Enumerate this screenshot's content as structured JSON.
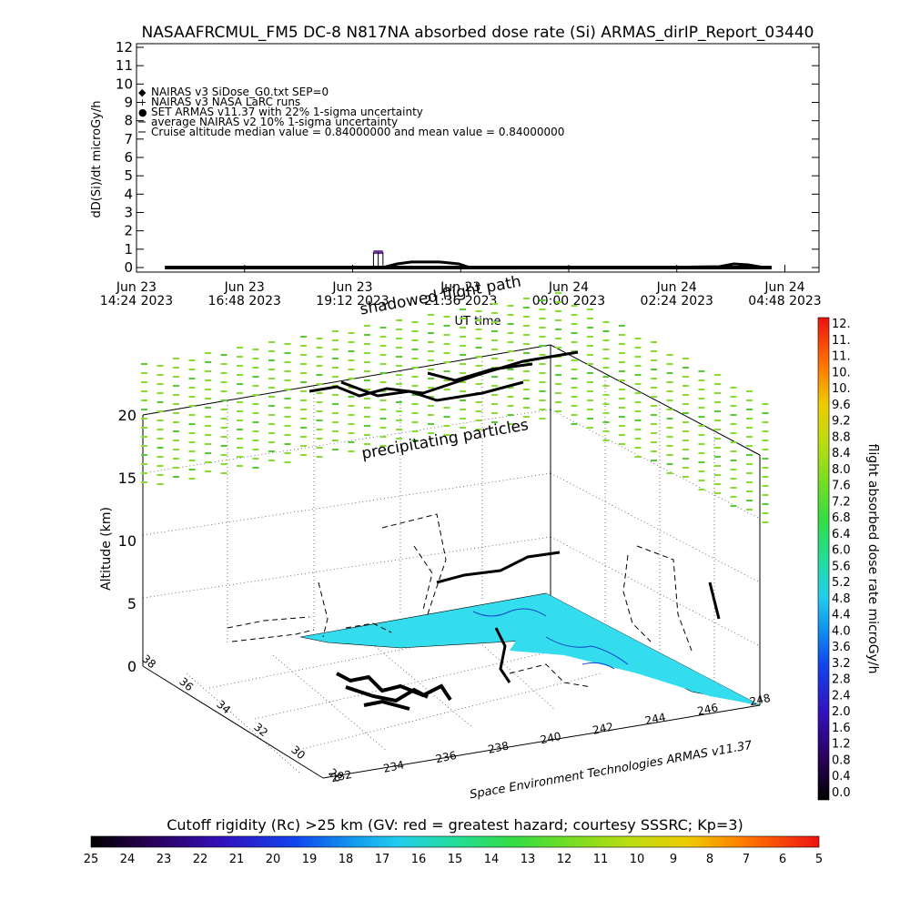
{
  "header": {
    "title": "NASAAFRCMUL_FM5 DC-8   N817NA absorbed dose rate (Si) ARMAS_dirIP_Report_03440"
  },
  "top_plot": {
    "ylabel": "dD(Si)/dt microGy/h",
    "xlabel": "UT time",
    "legend": [
      {
        "glyph": "◆",
        "text": "NAIRAS v3 SiDose_G0.txt SEP=0"
      },
      {
        "glyph": "+",
        "text": "NAIRAS v3 NASA LaRC runs"
      },
      {
        "glyph": "●",
        "text": "SET ARMAS v11.37 with 22% 1-sigma uncertainty"
      },
      {
        "glyph": "",
        "text": "average NAIRAS v2 10% 1-sigma uncertainty"
      },
      {
        "glyph": "",
        "text": "Cruise altitude median value = 0.84000000 and mean value = 0.84000000"
      }
    ]
  },
  "bottom_plot": {
    "ylabel": "Altitude (km)",
    "footer": "Space Environment Technologies ARMAS v11.37",
    "annotation_precip": "precipitating particles",
    "annotation_shadow": "shadowed flight path"
  },
  "colorbar_right": {
    "label": "flight absorbed dose rate microGy/h",
    "ticks": [
      "12.",
      "11.",
      "11.",
      "10.",
      "10.",
      "9.6",
      "9.2",
      "8.8",
      "8.4",
      "8.0",
      "7.6",
      "7.2",
      "6.8",
      "6.4",
      "6.0",
      "5.6",
      "5.2",
      "4.8",
      "4.4",
      "4.0",
      "3.6",
      "3.2",
      "2.8",
      "2.4",
      "2.0",
      "1.6",
      "1.2",
      "0.8",
      "0.4",
      "0.0"
    ]
  },
  "colorbar_bottom": {
    "title": "Cutoff rigidity (Rc) >25 km (GV: red = greatest hazard; courtesy SSSRC; Kp=3)",
    "ticks": [
      "25",
      "24",
      "23",
      "22",
      "21",
      "20",
      "19",
      "18",
      "17",
      "16",
      "15",
      "14",
      "13",
      "12",
      "11",
      "10",
      "9",
      "8",
      "7",
      "6",
      "5"
    ]
  },
  "colors": {
    "ocean": "#33ddee",
    "precip": "#88dd33",
    "flight": "#000000",
    "armas_point": "#663399"
  },
  "chart_data": [
    {
      "type": "line",
      "title": "NASAAFRCMUL_FM5 DC-8   N817NA absorbed dose rate (Si) ARMAS_dirIP_Report_03440",
      "xlabel": "UT time",
      "ylabel": "dD(Si)/dt microGy/h",
      "ylim": [
        0,
        12
      ],
      "yticks": [
        "0",
        "1",
        "2",
        "3",
        "4",
        "5",
        "6",
        "7",
        "8",
        "9",
        "10",
        "11",
        "12"
      ],
      "xticks": [
        {
          "l1": "Jun 23",
          "l2": "14:24 2023"
        },
        {
          "l1": "Jun 23",
          "l2": "16:48 2023"
        },
        {
          "l1": "Jun 23",
          "l2": "19:12 2023"
        },
        {
          "l1": "Jun 23",
          "l2": "21:36 2023"
        },
        {
          "l1": "Jun 24",
          "l2": "00:00 2023"
        },
        {
          "l1": "Jun 24",
          "l2": "02:24 2023"
        },
        {
          "l1": "Jun 24",
          "l2": "04:48 2023"
        }
      ],
      "xlim_hours": [
        0,
        14.4
      ],
      "series": [
        {
          "name": "NAIRAS v3 NASA LaRC runs",
          "x_hours": [
            0.6,
            3.0,
            5.2,
            5.5,
            5.8,
            6.4,
            6.8,
            7.0,
            7.5,
            9,
            11,
            12.3,
            12.6,
            12.9,
            13.2,
            13.4
          ],
          "values": [
            0,
            0,
            0,
            0.2,
            0.3,
            0.3,
            0.2,
            0.02,
            0,
            0,
            0,
            0.05,
            0.2,
            0.15,
            0.02,
            0
          ]
        },
        {
          "name": "SET ARMAS v11.37 with 22% 1-sigma uncertainty",
          "x_hours": [
            5.0,
            5.1,
            5.2
          ],
          "values": [
            0.84,
            0.84,
            0.84
          ]
        }
      ]
    },
    {
      "type": "scatter",
      "title": "",
      "ylabel": "Altitude (km)",
      "zlim": [
        0,
        20
      ],
      "zticks": [
        "0",
        "5",
        "10",
        "15",
        "20"
      ],
      "lon_ticks": [
        "232",
        "234",
        "236",
        "238",
        "240",
        "242",
        "244",
        "246",
        "248"
      ],
      "lat_ticks": [
        "28",
        "30",
        "32",
        "34",
        "36",
        "38"
      ]
    }
  ]
}
